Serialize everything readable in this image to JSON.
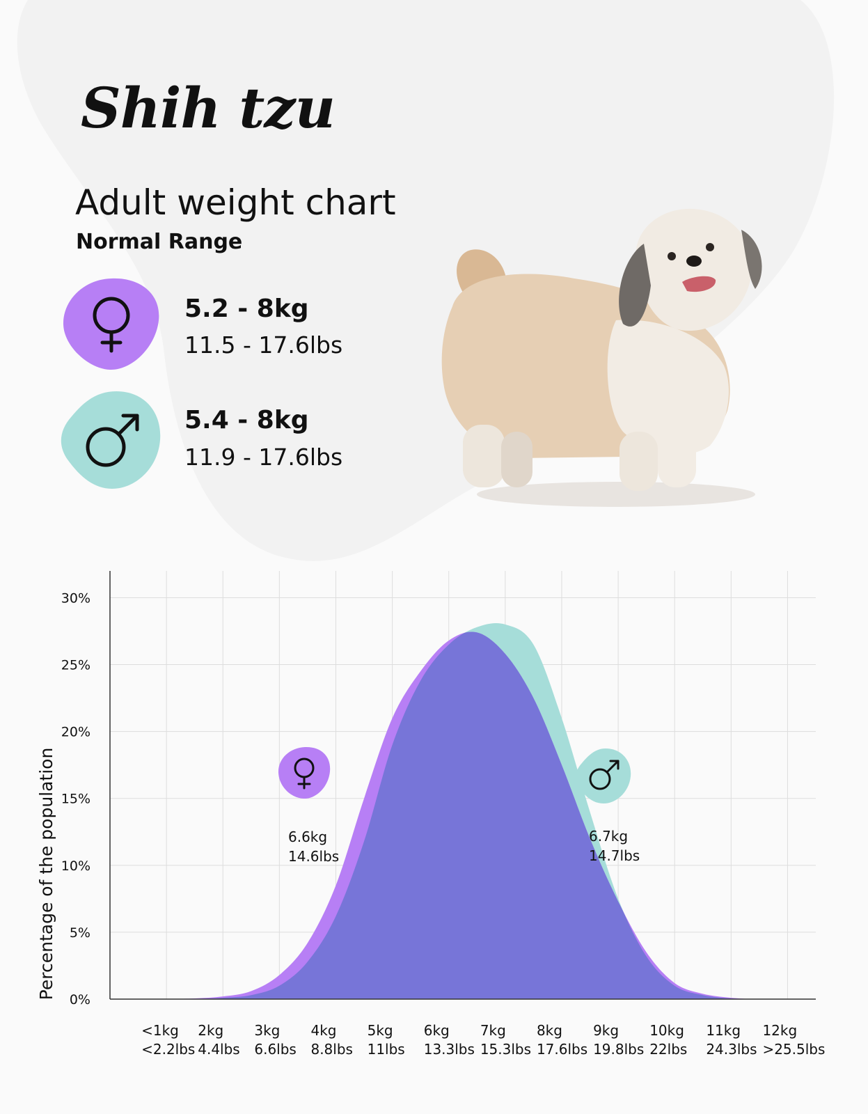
{
  "header": {
    "title": "Shih tzu",
    "subtitle": "Adult weight chart",
    "range_label": "Normal Range"
  },
  "ranges": {
    "female": {
      "kg": "5.2 - 8kg",
      "lbs": "11.5 - 17.6lbs",
      "icon": "female-icon",
      "color": "#b77ff5"
    },
    "male": {
      "kg": "5.4 - 8kg",
      "lbs": "11.9 - 17.6lbs",
      "icon": "male-icon",
      "color": "#a6ddd9"
    }
  },
  "colors": {
    "female": "#b77ff5",
    "male": "#a6ddd9",
    "overlap": "#7775d8",
    "background_blob": "#f2f2f2",
    "grid": "#dddddd"
  },
  "chart_data": {
    "type": "area",
    "title": "",
    "xlabel": "",
    "ylabel": "Percentage of the population",
    "ylim": [
      0,
      32
    ],
    "yticks": [
      0,
      5,
      10,
      15,
      20,
      25,
      30
    ],
    "ytick_labels": [
      "0%",
      "5%",
      "10%",
      "15%",
      "20%",
      "25%",
      "30%"
    ],
    "grid": true,
    "xlim": [
      0,
      12.5
    ],
    "xticks": [
      {
        "x": 1,
        "kg": "<1kg",
        "lbs": "<2.2lbs"
      },
      {
        "x": 2,
        "kg": "2kg",
        "lbs": "4.4lbs"
      },
      {
        "x": 3,
        "kg": "3kg",
        "lbs": "6.6lbs"
      },
      {
        "x": 4,
        "kg": "4kg",
        "lbs": "8.8lbs"
      },
      {
        "x": 5,
        "kg": "5kg",
        "lbs": "11lbs"
      },
      {
        "x": 6,
        "kg": "6kg",
        "lbs": "13.3lbs"
      },
      {
        "x": 7,
        "kg": "7kg",
        "lbs": "15.3lbs"
      },
      {
        "x": 8,
        "kg": "8kg",
        "lbs": "17.6lbs"
      },
      {
        "x": 9,
        "kg": "9kg",
        "lbs": "19.8lbs"
      },
      {
        "x": 10,
        "kg": "10kg",
        "lbs": "22lbs"
      },
      {
        "x": 11,
        "kg": "11kg",
        "lbs": "24.3lbs"
      },
      {
        "x": 12,
        "kg": "12kg",
        "lbs": ">25.5lbs"
      }
    ],
    "series": [
      {
        "name": "Female",
        "x": [
          1,
          1.5,
          2,
          2.5,
          3,
          3.5,
          4,
          4.5,
          5,
          5.5,
          6,
          6.5,
          7,
          7.5,
          8,
          8.5,
          9,
          9.5,
          10,
          10.5,
          11,
          11.5,
          12
        ],
        "values": [
          0,
          0.05,
          0.2,
          0.6,
          1.8,
          4.2,
          8.5,
          15,
          21,
          24.5,
          26.8,
          27.4,
          25.8,
          22.5,
          17.5,
          12,
          7.3,
          3.5,
          1.2,
          0.4,
          0.1,
          0,
          0
        ]
      },
      {
        "name": "Male",
        "x": [
          1,
          1.5,
          2,
          2.5,
          3,
          3.5,
          4,
          4.5,
          5,
          5.5,
          6,
          6.5,
          7,
          7.5,
          8,
          8.5,
          9,
          9.5,
          10,
          10.5,
          11,
          11.5,
          12
        ],
        "values": [
          0,
          0.02,
          0.1,
          0.3,
          1,
          2.8,
          6.2,
          11.8,
          19,
          23.8,
          26.5,
          27.8,
          28,
          26.5,
          21,
          14,
          7.5,
          3.2,
          1,
          0.3,
          0.05,
          0,
          0
        ]
      }
    ],
    "annotations": [
      {
        "series": "Female",
        "icon": "female-icon",
        "kg": "6.6kg",
        "lbs": "14.6lbs"
      },
      {
        "series": "Male",
        "icon": "male-icon",
        "kg": "6.7kg",
        "lbs": "14.7lbs"
      }
    ]
  }
}
